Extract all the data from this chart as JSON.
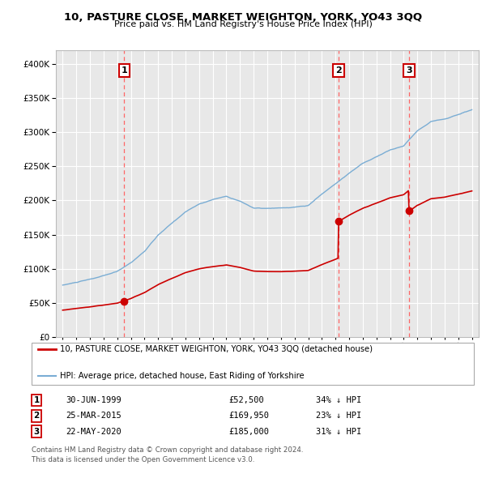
{
  "title": "10, PASTURE CLOSE, MARKET WEIGHTON, YORK, YO43 3QQ",
  "subtitle": "Price paid vs. HM Land Registry's House Price Index (HPI)",
  "red_label": "10, PASTURE CLOSE, MARKET WEIGHTON, YORK, YO43 3QQ (detached house)",
  "blue_label": "HPI: Average price, detached house, East Riding of Yorkshire",
  "transactions": [
    {
      "num": 1,
      "date": "30-JUN-1999",
      "price": 52500,
      "year": 1999.5,
      "pct": "34% ↓ HPI"
    },
    {
      "num": 2,
      "date": "25-MAR-2015",
      "price": 169950,
      "year": 2015.23,
      "pct": "23% ↓ HPI"
    },
    {
      "num": 3,
      "date": "22-MAY-2020",
      "price": 185000,
      "year": 2020.39,
      "pct": "31% ↓ HPI"
    }
  ],
  "footer_line1": "Contains HM Land Registry data © Crown copyright and database right 2024.",
  "footer_line2": "This data is licensed under the Open Government Licence v3.0.",
  "ylim": [
    0,
    420000
  ],
  "xlim_start": 1994.5,
  "xlim_end": 2025.5,
  "background_color": "#ffffff",
  "plot_bg_color": "#e8e8e8",
  "grid_color": "#ffffff",
  "red_color": "#cc0000",
  "blue_color": "#7aadd4",
  "vline_color": "#ff6666",
  "number_box_color": "#cc0000"
}
